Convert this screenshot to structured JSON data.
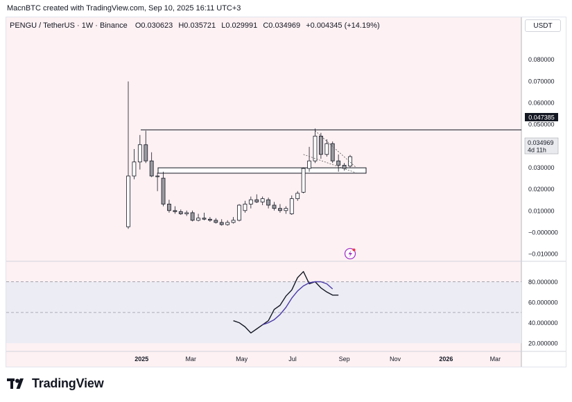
{
  "caption": "MacnBTC created with TradingView.com, Sep 10, 2025 16:11 UTC+3",
  "header": {
    "symbol": "PENGU / TetherUS · 1W · Binance",
    "open_label": "O",
    "open": "0.030623",
    "high_label": "H",
    "high": "0.035721",
    "low_label": "L",
    "low": "0.029991",
    "close_label": "C",
    "close": "0.034969",
    "change": "+0.004345 (+14.19%)"
  },
  "currency_button": "USDT",
  "price_tag": {
    "price": "0.034969",
    "countdown": "4d 11h"
  },
  "level_tag": "0.047385",
  "brand": "TradingView",
  "colors": {
    "background": "#fdf1f3",
    "oscillator_band": "#ececf4",
    "up_candle": "#ffffff",
    "down_candle": "#9a9aa0",
    "candle_border": "#131722",
    "oscillator_k": "#131722",
    "oscillator_d": "#4a3aa8",
    "event_icon": "#a335c7"
  },
  "chart_data": [
    {
      "type": "candlestick",
      "x_ticks": [
        "2025",
        "Mar",
        "May",
        "Jul",
        "Sep",
        "Nov",
        "2026",
        "Mar"
      ],
      "y_ticks": [
        "0.080000",
        "0.070000",
        "0.060000",
        "0.050000",
        "0.040000",
        "0.030000",
        "0.020000",
        "0.010000",
        "−0.000000",
        "−0.010000"
      ],
      "ylim": [
        -0.0135,
        0.0995
      ],
      "horizontal_line": 0.047385,
      "support_zone": [
        0.0273,
        0.0298
      ],
      "candles": [
        {
          "date": "2024-12-16",
          "o": 0.0025,
          "h": 0.0698,
          "l": 0.0015,
          "c": 0.026
        },
        {
          "date": "2024-12-23",
          "o": 0.026,
          "h": 0.0385,
          "l": 0.0245,
          "c": 0.0325
        },
        {
          "date": "2024-12-30",
          "o": 0.0325,
          "h": 0.045,
          "l": 0.029,
          "c": 0.0405
        },
        {
          "date": "2025-01-06",
          "o": 0.0405,
          "h": 0.047,
          "l": 0.032,
          "c": 0.033
        },
        {
          "date": "2025-01-13",
          "o": 0.033,
          "h": 0.037,
          "l": 0.0255,
          "c": 0.026
        },
        {
          "date": "2025-01-20",
          "o": 0.026,
          "h": 0.0275,
          "l": 0.019,
          "c": 0.026
        },
        {
          "date": "2025-01-27",
          "o": 0.025,
          "h": 0.028,
          "l": 0.012,
          "c": 0.013
        },
        {
          "date": "2025-02-03",
          "o": 0.013,
          "h": 0.015,
          "l": 0.009,
          "c": 0.01
        },
        {
          "date": "2025-02-10",
          "o": 0.01,
          "h": 0.012,
          "l": 0.0085,
          "c": 0.0095
        },
        {
          "date": "2025-02-17",
          "o": 0.0095,
          "h": 0.0105,
          "l": 0.008,
          "c": 0.0085
        },
        {
          "date": "2025-02-24",
          "o": 0.0085,
          "h": 0.01,
          "l": 0.0075,
          "c": 0.009
        },
        {
          "date": "2025-03-03",
          "o": 0.009,
          "h": 0.01,
          "l": 0.005,
          "c": 0.0055
        },
        {
          "date": "2025-03-10",
          "o": 0.0055,
          "h": 0.0085,
          "l": 0.005,
          "c": 0.0065
        },
        {
          "date": "2025-03-17",
          "o": 0.0065,
          "h": 0.009,
          "l": 0.0055,
          "c": 0.006
        },
        {
          "date": "2025-03-24",
          "o": 0.006,
          "h": 0.007,
          "l": 0.0048,
          "c": 0.0055
        },
        {
          "date": "2025-03-31",
          "o": 0.0055,
          "h": 0.0065,
          "l": 0.004,
          "c": 0.0045
        },
        {
          "date": "2025-04-07",
          "o": 0.0045,
          "h": 0.006,
          "l": 0.003,
          "c": 0.0035
        },
        {
          "date": "2025-04-14",
          "o": 0.0035,
          "h": 0.0055,
          "l": 0.003,
          "c": 0.0045
        },
        {
          "date": "2025-04-21",
          "o": 0.0045,
          "h": 0.007,
          "l": 0.004,
          "c": 0.0055
        },
        {
          "date": "2025-04-28",
          "o": 0.0055,
          "h": 0.013,
          "l": 0.005,
          "c": 0.0125
        },
        {
          "date": "2025-05-05",
          "o": 0.01,
          "h": 0.0145,
          "l": 0.009,
          "c": 0.013
        },
        {
          "date": "2025-05-12",
          "o": 0.013,
          "h": 0.0165,
          "l": 0.011,
          "c": 0.015
        },
        {
          "date": "2025-05-19",
          "o": 0.015,
          "h": 0.0175,
          "l": 0.0135,
          "c": 0.014
        },
        {
          "date": "2025-05-26",
          "o": 0.014,
          "h": 0.0165,
          "l": 0.0125,
          "c": 0.0155
        },
        {
          "date": "2025-06-02",
          "o": 0.015,
          "h": 0.016,
          "l": 0.011,
          "c": 0.0125
        },
        {
          "date": "2025-06-09",
          "o": 0.0125,
          "h": 0.014,
          "l": 0.01,
          "c": 0.011
        },
        {
          "date": "2025-06-16",
          "o": 0.011,
          "h": 0.013,
          "l": 0.009,
          "c": 0.01
        },
        {
          "date": "2025-06-23",
          "o": 0.01,
          "h": 0.012,
          "l": 0.0085,
          "c": 0.011
        },
        {
          "date": "2025-06-30",
          "o": 0.0085,
          "h": 0.017,
          "l": 0.008,
          "c": 0.0155
        },
        {
          "date": "2025-07-07",
          "o": 0.0155,
          "h": 0.019,
          "l": 0.0145,
          "c": 0.018
        },
        {
          "date": "2025-07-14",
          "o": 0.0185,
          "h": 0.03,
          "l": 0.018,
          "c": 0.0295
        },
        {
          "date": "2025-07-21",
          "o": 0.0295,
          "h": 0.0395,
          "l": 0.028,
          "c": 0.033
        },
        {
          "date": "2025-07-28",
          "o": 0.033,
          "h": 0.048,
          "l": 0.032,
          "c": 0.0445
        },
        {
          "date": "2025-08-04",
          "o": 0.0445,
          "h": 0.046,
          "l": 0.034,
          "c": 0.036
        },
        {
          "date": "2025-08-11",
          "o": 0.036,
          "h": 0.043,
          "l": 0.035,
          "c": 0.041
        },
        {
          "date": "2025-08-18",
          "o": 0.041,
          "h": 0.042,
          "l": 0.032,
          "c": 0.033
        },
        {
          "date": "2025-08-25",
          "o": 0.033,
          "h": 0.036,
          "l": 0.028,
          "c": 0.031
        },
        {
          "date": "2025-09-01",
          "o": 0.031,
          "h": 0.032,
          "l": 0.0285,
          "c": 0.0295
        },
        {
          "date": "2025-09-08",
          "o": 0.030623,
          "h": 0.035721,
          "l": 0.029991,
          "c": 0.034969
        }
      ],
      "wedge_upper": [
        [
          "2025-07-28",
          0.047
        ],
        [
          "2025-09-15",
          0.03
        ]
      ],
      "wedge_lower": [
        [
          "2025-07-14",
          0.036
        ],
        [
          "2025-09-15",
          0.0275
        ]
      ]
    },
    {
      "type": "line",
      "y_ticks": [
        "80.000000",
        "60.000000",
        "40.000000",
        "20.000000"
      ],
      "ylim": [
        12,
        100
      ],
      "dashed_levels": [
        80,
        50
      ],
      "band": [
        20,
        80
      ],
      "series": [
        {
          "values": [
            [
              "2025-04-21",
              42
            ],
            [
              "2025-04-28",
              40
            ],
            [
              "2025-05-05",
              36
            ],
            [
              "2025-05-12",
              30
            ],
            [
              "2025-05-19",
              34
            ],
            [
              "2025-05-26",
              38
            ],
            [
              "2025-06-02",
              42
            ],
            [
              "2025-06-09",
              53
            ],
            [
              "2025-06-16",
              57
            ],
            [
              "2025-06-23",
              66
            ],
            [
              "2025-06-30",
              72
            ],
            [
              "2025-07-07",
              84
            ],
            [
              "2025-07-14",
              90
            ],
            [
              "2025-07-21",
              78
            ],
            [
              "2025-07-28",
              80
            ],
            [
              "2025-08-04",
              74
            ],
            [
              "2025-08-11",
              70
            ],
            [
              "2025-08-18",
              67
            ],
            [
              "2025-08-25",
              67
            ]
          ]
        },
        {
          "values": [
            [
              "2025-05-26",
              38
            ],
            [
              "2025-06-02",
              40
            ],
            [
              "2025-06-09",
              43
            ],
            [
              "2025-06-16",
              48
            ],
            [
              "2025-06-23",
              55
            ],
            [
              "2025-06-30",
              64
            ],
            [
              "2025-07-07",
              71
            ],
            [
              "2025-07-14",
              76
            ],
            [
              "2025-07-21",
              79
            ],
            [
              "2025-07-28",
              80
            ],
            [
              "2025-08-04",
              80
            ],
            [
              "2025-08-11",
              78
            ],
            [
              "2025-08-18",
              73
            ]
          ]
        }
      ]
    }
  ]
}
